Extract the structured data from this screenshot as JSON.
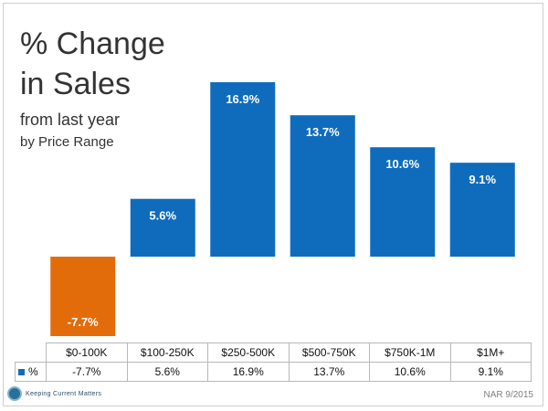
{
  "title_main": "% Change in Sales",
  "title_sub": "from last year",
  "title_sub_2": "by Price Range",
  "legend_label": "%",
  "source_note": "NAR 9/2015",
  "logo_text": "Keeping Current Matters",
  "colors": {
    "positive_bar": "#0f6cbd",
    "negative_bar": "#e36c0a",
    "text": "#333333"
  },
  "chart_data": {
    "type": "bar",
    "categories": [
      "$0-100K",
      "$100-250K",
      "$250-500K",
      "$500-750K",
      "$750K-1M",
      "$1M+"
    ],
    "series": [
      {
        "name": "%",
        "values": [
          -7.7,
          5.6,
          16.9,
          13.7,
          10.6,
          9.1
        ]
      }
    ],
    "data_labels": [
      "-7.7%",
      "5.6%",
      "16.9%",
      "13.7%",
      "10.6%",
      "9.1%"
    ],
    "table_values": [
      "-7.7%",
      "5.6%",
      "16.9%",
      "13.7%",
      "10.6%",
      "9.1%"
    ],
    "ylim": [
      -7.7,
      16.9
    ],
    "grid": false,
    "legend_placement": "data-table"
  }
}
